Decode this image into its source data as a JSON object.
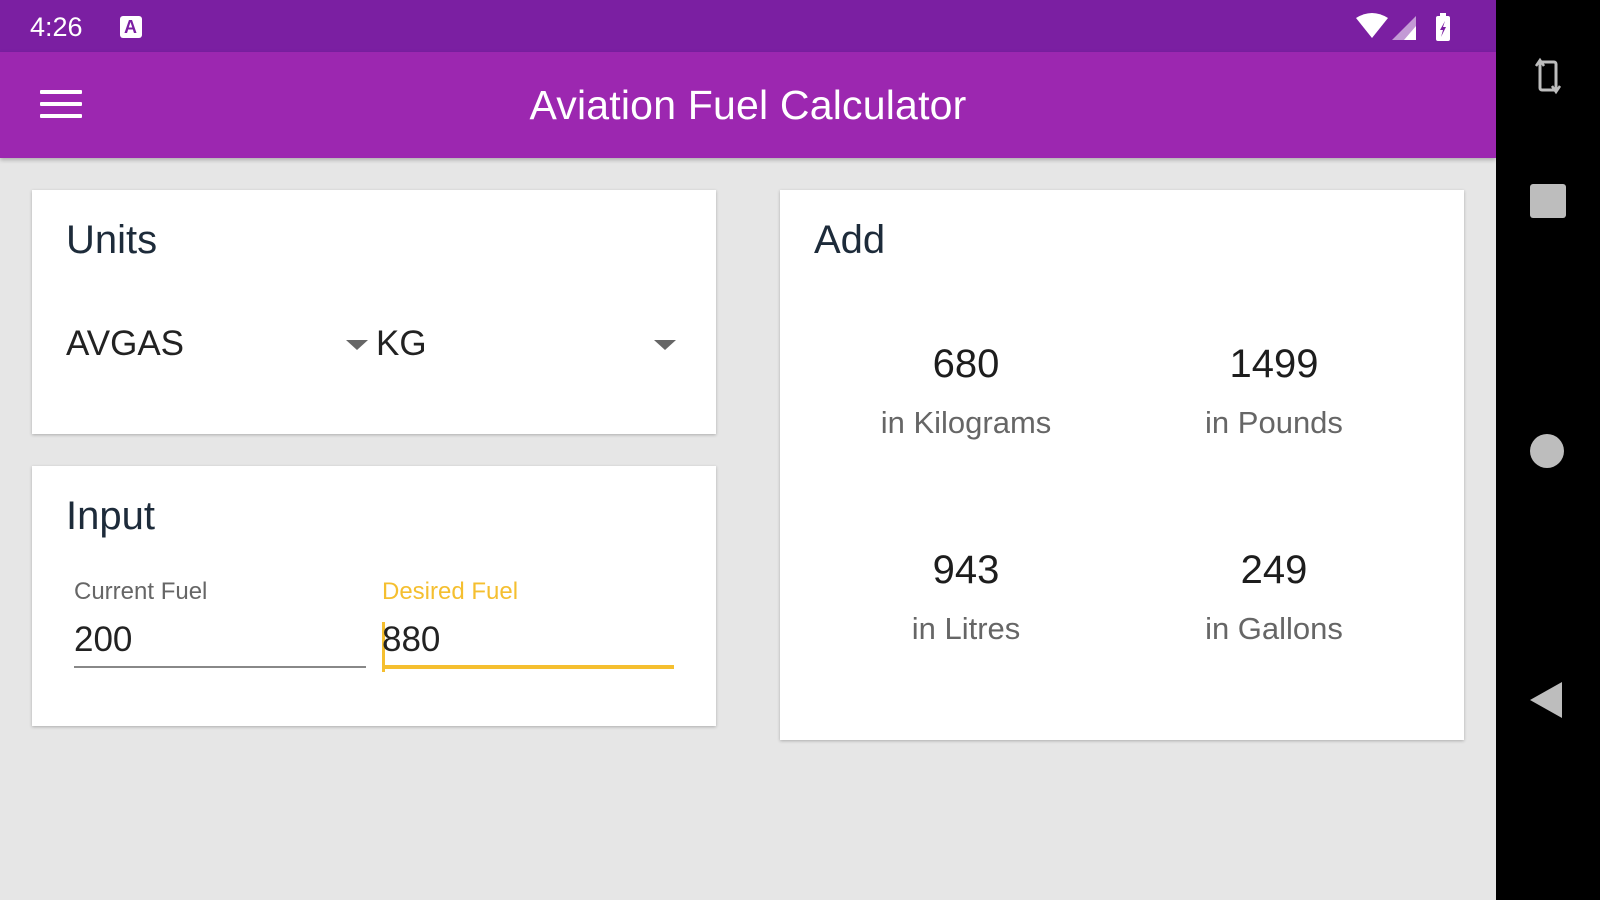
{
  "status_bar": {
    "time": "4:26",
    "notification_icon": "a-notification-icon",
    "icons": [
      "wifi-icon",
      "signal-icon",
      "battery-icon"
    ]
  },
  "app_bar": {
    "menu_icon": "hamburger-menu-icon",
    "title": "Aviation Fuel Calculator",
    "color": "#9c27b0"
  },
  "units_card": {
    "title": "Units",
    "fuel_type": "AVGAS",
    "unit": "KG"
  },
  "input_card": {
    "title": "Input",
    "current_fuel": {
      "label": "Current Fuel",
      "value": "200"
    },
    "desired_fuel": {
      "label": "Desired Fuel",
      "value": "880"
    },
    "focus_color": "#f5bf2f"
  },
  "add_card": {
    "title": "Add",
    "results": [
      {
        "value": "680",
        "unit": "in Kilograms"
      },
      {
        "value": "1499",
        "unit": "in Pounds"
      },
      {
        "value": "943",
        "unit": "in Litres"
      },
      {
        "value": "249",
        "unit": "in Gallons"
      }
    ]
  },
  "nav_bar": {
    "buttons": [
      "rotate-icon",
      "recents-icon",
      "home-icon",
      "back-icon"
    ]
  }
}
